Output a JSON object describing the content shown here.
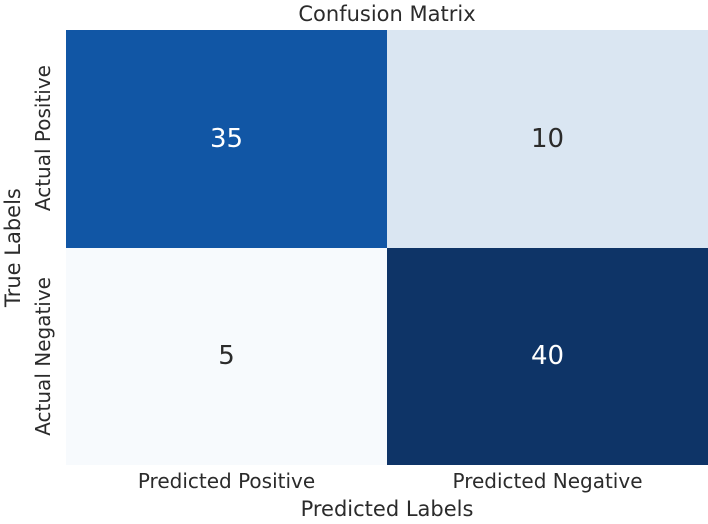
{
  "figure": {
    "background": "#ffffff",
    "text_color": "#2b2b2b"
  },
  "chart_data": {
    "type": "heatmap",
    "title": "Confusion Matrix",
    "xlabel": "Predicted Labels",
    "ylabel": "True Labels",
    "x_tick_labels": [
      "Predicted Positive",
      "Predicted Negative"
    ],
    "y_tick_labels": [
      "Actual Positive",
      "Actual Negative"
    ],
    "categories_x": [
      "Predicted Positive",
      "Predicted Negative"
    ],
    "categories_y": [
      "Actual Positive",
      "Actual Negative"
    ],
    "values": [
      [
        35,
        10
      ],
      [
        5,
        40
      ]
    ],
    "value_range": [
      5,
      40
    ],
    "colormap": "Blues",
    "grid": false,
    "legend": "none",
    "cells": [
      {
        "row": "Actual Positive",
        "col": "Predicted Positive",
        "value": "35",
        "bg": "#1156a5",
        "fg": "#ffffff"
      },
      {
        "row": "Actual Positive",
        "col": "Predicted Negative",
        "value": "10",
        "bg": "#dae6f2",
        "fg": "#2b2b2b"
      },
      {
        "row": "Actual Negative",
        "col": "Predicted Positive",
        "value": "5",
        "bg": "#f7fafd",
        "fg": "#2b2b2b"
      },
      {
        "row": "Actual Negative",
        "col": "Predicted Negative",
        "value": "40",
        "bg": "#0e3467",
        "fg": "#ffffff"
      }
    ]
  }
}
